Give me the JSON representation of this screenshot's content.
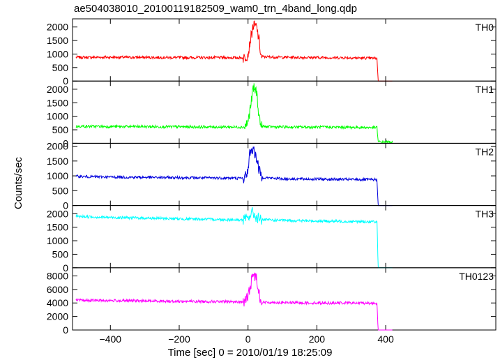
{
  "chart_data": {
    "type": "line",
    "title": "ae504038010_20100119182509_wam0_trn_4band_long.qdp",
    "xlabel": "Time [sec] 0 = 2010/01/19 18:25:09",
    "ylabel": "Counts/sec",
    "xlim": [
      -510,
      720
    ],
    "xticks": [
      -400,
      -200,
      0,
      200,
      400
    ],
    "xtick_labels": [
      "−400",
      "−200",
      "0",
      "200",
      "400"
    ],
    "grid": false,
    "panels": [
      {
        "name": "TH0",
        "color": "#ff0000",
        "ylim": [
          0,
          2250
        ],
        "yticks": [
          0,
          500,
          1000,
          1500,
          2000
        ],
        "ytick_labels": [
          "0",
          "500",
          "1000",
          "1500",
          "2000"
        ],
        "points": [
          [
            -500,
            880
          ],
          [
            -400,
            880
          ],
          [
            -300,
            875
          ],
          [
            -200,
            870
          ],
          [
            -100,
            870
          ],
          [
            -10,
            860
          ],
          [
            0,
            1000
          ],
          [
            8,
            1600
          ],
          [
            15,
            2050
          ],
          [
            25,
            2000
          ],
          [
            32,
            1500
          ],
          [
            38,
            900
          ],
          [
            100,
            880
          ],
          [
            200,
            870
          ],
          [
            300,
            860
          ],
          [
            375,
            840
          ],
          [
            378,
            0
          ],
          [
            420,
            0
          ]
        ]
      },
      {
        "name": "TH1",
        "color": "#00ff00",
        "ylim": [
          0,
          2250
        ],
        "yticks": [
          0,
          500,
          1000,
          1500,
          2000
        ],
        "ytick_labels": [
          "0",
          "500",
          "1000",
          "1500",
          "2000"
        ],
        "points": [
          [
            -500,
            630
          ],
          [
            -400,
            620
          ],
          [
            -300,
            615
          ],
          [
            -200,
            610
          ],
          [
            -100,
            605
          ],
          [
            -10,
            600
          ],
          [
            0,
            800
          ],
          [
            8,
            1400
          ],
          [
            15,
            2050
          ],
          [
            25,
            1900
          ],
          [
            32,
            1000
          ],
          [
            38,
            620
          ],
          [
            100,
            600
          ],
          [
            200,
            600
          ],
          [
            300,
            590
          ],
          [
            375,
            580
          ],
          [
            378,
            50
          ],
          [
            420,
            50
          ]
        ]
      },
      {
        "name": "TH2",
        "color": "#0000dd",
        "ylim": [
          0,
          2050
        ],
        "yticks": [
          0,
          500,
          1000,
          1500,
          2000
        ],
        "ytick_labels": [
          "0",
          "500",
          "1000",
          "1500",
          "2000"
        ],
        "points": [
          [
            -500,
            980
          ],
          [
            -400,
            960
          ],
          [
            -300,
            950
          ],
          [
            -200,
            940
          ],
          [
            -100,
            930
          ],
          [
            -10,
            920
          ],
          [
            0,
            1200
          ],
          [
            6,
            1850
          ],
          [
            15,
            1900
          ],
          [
            25,
            1600
          ],
          [
            32,
            1200
          ],
          [
            40,
            950
          ],
          [
            100,
            900
          ],
          [
            200,
            890
          ],
          [
            300,
            880
          ],
          [
            375,
            870
          ],
          [
            378,
            0
          ],
          [
            420,
            0
          ]
        ]
      },
      {
        "name": "TH3",
        "color": "#00ffff",
        "ylim": [
          0,
          2250
        ],
        "yticks": [
          0,
          500,
          1000,
          1500,
          2000
        ],
        "ytick_labels": [
          "0",
          "500",
          "1000",
          "1500",
          "2000"
        ],
        "points": [
          [
            -500,
            1900
          ],
          [
            -400,
            1860
          ],
          [
            -300,
            1840
          ],
          [
            -200,
            1810
          ],
          [
            -100,
            1790
          ],
          [
            -10,
            1770
          ],
          [
            0,
            1850
          ],
          [
            12,
            2050
          ],
          [
            25,
            1850
          ],
          [
            40,
            1780
          ],
          [
            100,
            1750
          ],
          [
            200,
            1730
          ],
          [
            300,
            1710
          ],
          [
            375,
            1700
          ],
          [
            378,
            0
          ],
          [
            420,
            0
          ]
        ]
      },
      {
        "name": "TH0123",
        "color": "#ff00ff",
        "ylim": [
          0,
          9000
        ],
        "yticks": [
          0,
          2000,
          4000,
          6000,
          8000
        ],
        "ytick_labels": [
          "0",
          "2000",
          "4000",
          "6000",
          "8000"
        ],
        "points": [
          [
            -500,
            4400
          ],
          [
            -400,
            4350
          ],
          [
            -300,
            4300
          ],
          [
            -200,
            4250
          ],
          [
            -100,
            4200
          ],
          [
            -10,
            4150
          ],
          [
            0,
            5000
          ],
          [
            8,
            6800
          ],
          [
            15,
            8200
          ],
          [
            25,
            7700
          ],
          [
            32,
            5500
          ],
          [
            38,
            4100
          ],
          [
            100,
            4050
          ],
          [
            200,
            4000
          ],
          [
            300,
            4000
          ],
          [
            375,
            3950
          ],
          [
            378,
            0
          ],
          [
            420,
            0
          ]
        ]
      }
    ]
  }
}
